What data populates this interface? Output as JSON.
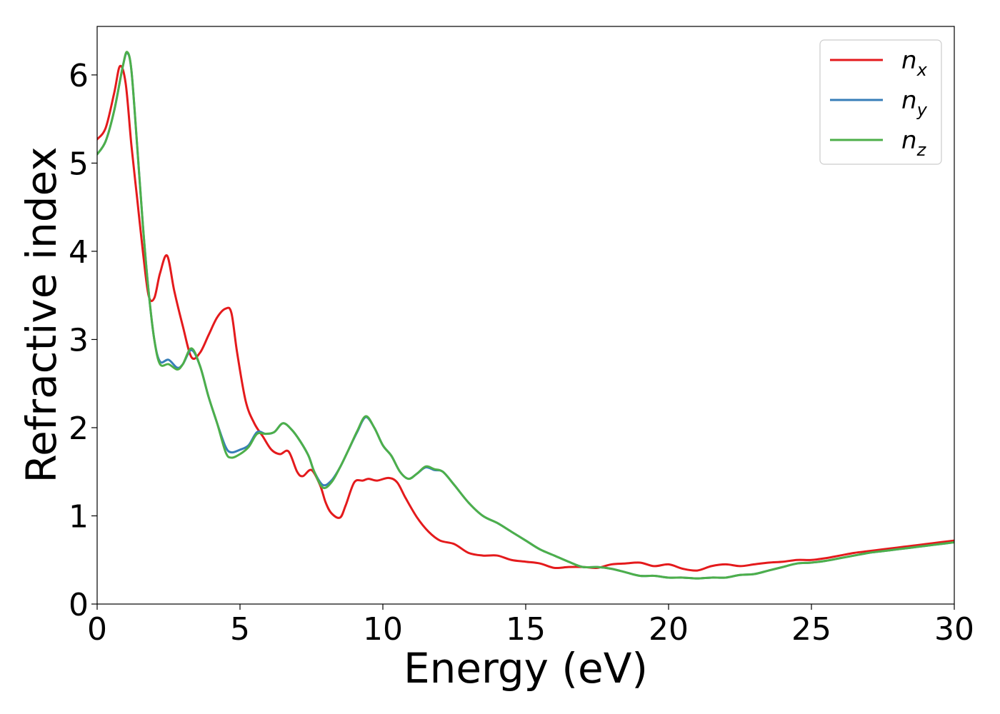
{
  "chart_data": {
    "type": "line",
    "xlabel": "Energy (eV)",
    "ylabel": "Refractive index",
    "xlim": [
      0,
      30
    ],
    "ylim": [
      0,
      6.55
    ],
    "xticks": [
      0,
      5,
      10,
      15,
      20,
      25,
      30
    ],
    "yticks": [
      0,
      1,
      2,
      3,
      4,
      5,
      6
    ],
    "grid": false,
    "legend_position": "top-right",
    "series": [
      {
        "name_base": "n",
        "name_sub": "x",
        "color": "#e41a1c",
        "x": [
          0,
          0.3,
          0.6,
          0.8,
          1.0,
          1.2,
          1.4,
          1.6,
          1.8,
          2.0,
          2.2,
          2.45,
          2.7,
          3.0,
          3.3,
          3.6,
          3.9,
          4.2,
          4.5,
          4.7,
          4.9,
          5.2,
          5.5,
          5.8,
          6.1,
          6.4,
          6.7,
          7.0,
          7.2,
          7.5,
          7.8,
          8.0,
          8.2,
          8.5,
          8.7,
          9.0,
          9.3,
          9.5,
          9.8,
          10.2,
          10.5,
          10.8,
          11.2,
          11.6,
          12.0,
          12.5,
          13.0,
          13.5,
          14.0,
          14.5,
          15.0,
          15.5,
          16.0,
          16.5,
          17.0,
          17.5,
          18.0,
          18.5,
          19.0,
          19.5,
          20.0,
          20.5,
          21.0,
          21.5,
          22.0,
          22.5,
          23.0,
          23.5,
          24.0,
          24.5,
          25.0,
          25.5,
          26.0,
          26.5,
          27.0,
          27.5,
          28.0,
          28.5,
          29.0,
          29.5,
          30.0
        ],
        "y": [
          5.27,
          5.4,
          5.8,
          6.1,
          5.9,
          5.2,
          4.6,
          4.0,
          3.5,
          3.47,
          3.75,
          3.95,
          3.55,
          3.15,
          2.8,
          2.85,
          3.05,
          3.25,
          3.35,
          3.3,
          2.85,
          2.3,
          2.05,
          1.9,
          1.75,
          1.7,
          1.73,
          1.5,
          1.45,
          1.52,
          1.35,
          1.15,
          1.03,
          0.98,
          1.12,
          1.38,
          1.4,
          1.42,
          1.4,
          1.43,
          1.38,
          1.2,
          0.98,
          0.82,
          0.72,
          0.68,
          0.58,
          0.55,
          0.55,
          0.5,
          0.48,
          0.46,
          0.41,
          0.42,
          0.42,
          0.41,
          0.45,
          0.46,
          0.47,
          0.43,
          0.45,
          0.4,
          0.38,
          0.43,
          0.45,
          0.43,
          0.45,
          0.47,
          0.48,
          0.5,
          0.5,
          0.52,
          0.55,
          0.58,
          0.6,
          0.62,
          0.64,
          0.66,
          0.68,
          0.7,
          0.72
        ]
      },
      {
        "name_base": "n",
        "name_sub": "y",
        "color": "#377eb8",
        "x": [
          0,
          0.3,
          0.6,
          0.9,
          1.05,
          1.2,
          1.4,
          1.6,
          1.8,
          2.0,
          2.2,
          2.5,
          2.8,
          3.0,
          3.3,
          3.6,
          3.9,
          4.2,
          4.5,
          4.7,
          5.0,
          5.3,
          5.6,
          5.9,
          6.2,
          6.5,
          6.8,
          7.1,
          7.4,
          7.6,
          7.9,
          8.2,
          8.5,
          8.8,
          9.1,
          9.4,
          9.7,
          10.0,
          10.3,
          10.6,
          10.9,
          11.2,
          11.5,
          11.8,
          12.1,
          12.5,
          13.0,
          13.5,
          14.0,
          14.5,
          15.0,
          15.5,
          16.0,
          16.5,
          17.0,
          17.5,
          18.0,
          18.5,
          19.0,
          19.5,
          20.0,
          20.5,
          21.0,
          21.5,
          22.0,
          22.5,
          23.0,
          23.5,
          24.0,
          24.5,
          25.0,
          25.5,
          26.0,
          26.5,
          27.0,
          27.5,
          28.0,
          28.5,
          29.0,
          29.5,
          30.0
        ],
        "y": [
          5.1,
          5.25,
          5.6,
          6.1,
          6.25,
          6.05,
          5.2,
          4.3,
          3.55,
          3.0,
          2.75,
          2.77,
          2.68,
          2.72,
          2.88,
          2.7,
          2.35,
          2.05,
          1.78,
          1.72,
          1.75,
          1.8,
          1.95,
          1.93,
          1.95,
          2.05,
          1.98,
          1.85,
          1.68,
          1.5,
          1.35,
          1.4,
          1.55,
          1.75,
          1.95,
          2.12,
          2.0,
          1.8,
          1.68,
          1.5,
          1.42,
          1.48,
          1.55,
          1.52,
          1.5,
          1.35,
          1.15,
          1.0,
          0.92,
          0.82,
          0.72,
          0.62,
          0.55,
          0.48,
          0.42,
          0.42,
          0.4,
          0.36,
          0.32,
          0.32,
          0.3,
          0.3,
          0.29,
          0.3,
          0.3,
          0.33,
          0.34,
          0.38,
          0.42,
          0.46,
          0.47,
          0.49,
          0.52,
          0.55,
          0.58,
          0.6,
          0.62,
          0.64,
          0.66,
          0.68,
          0.7
        ]
      },
      {
        "name_base": "n",
        "name_sub": "z",
        "color": "#4daf4a",
        "x": [
          0,
          0.3,
          0.6,
          0.9,
          1.05,
          1.2,
          1.4,
          1.6,
          1.8,
          2.0,
          2.2,
          2.5,
          2.8,
          3.0,
          3.3,
          3.6,
          3.9,
          4.2,
          4.5,
          4.7,
          5.0,
          5.3,
          5.6,
          5.9,
          6.2,
          6.5,
          6.8,
          7.1,
          7.4,
          7.6,
          7.9,
          8.2,
          8.5,
          8.8,
          9.1,
          9.4,
          9.7,
          10.0,
          10.3,
          10.6,
          10.9,
          11.2,
          11.5,
          11.8,
          12.1,
          12.5,
          13.0,
          13.5,
          14.0,
          14.5,
          15.0,
          15.5,
          16.0,
          16.5,
          17.0,
          17.5,
          18.0,
          18.5,
          19.0,
          19.5,
          20.0,
          20.5,
          21.0,
          21.5,
          22.0,
          22.5,
          23.0,
          23.5,
          24.0,
          24.5,
          25.0,
          25.5,
          26.0,
          26.5,
          27.0,
          27.5,
          28.0,
          28.5,
          29.0,
          29.5,
          30.0
        ],
        "y": [
          5.1,
          5.25,
          5.6,
          6.1,
          6.26,
          6.05,
          5.2,
          4.3,
          3.55,
          3.0,
          2.72,
          2.72,
          2.66,
          2.72,
          2.9,
          2.7,
          2.35,
          2.05,
          1.72,
          1.66,
          1.7,
          1.78,
          1.93,
          1.93,
          1.95,
          2.05,
          1.98,
          1.85,
          1.68,
          1.5,
          1.32,
          1.38,
          1.55,
          1.75,
          1.96,
          2.13,
          2.0,
          1.8,
          1.68,
          1.5,
          1.42,
          1.48,
          1.56,
          1.53,
          1.5,
          1.35,
          1.15,
          1.0,
          0.92,
          0.82,
          0.72,
          0.62,
          0.55,
          0.48,
          0.42,
          0.42,
          0.4,
          0.36,
          0.32,
          0.32,
          0.3,
          0.3,
          0.29,
          0.3,
          0.3,
          0.33,
          0.34,
          0.38,
          0.42,
          0.46,
          0.47,
          0.49,
          0.52,
          0.55,
          0.58,
          0.6,
          0.62,
          0.64,
          0.66,
          0.68,
          0.7
        ]
      }
    ]
  }
}
